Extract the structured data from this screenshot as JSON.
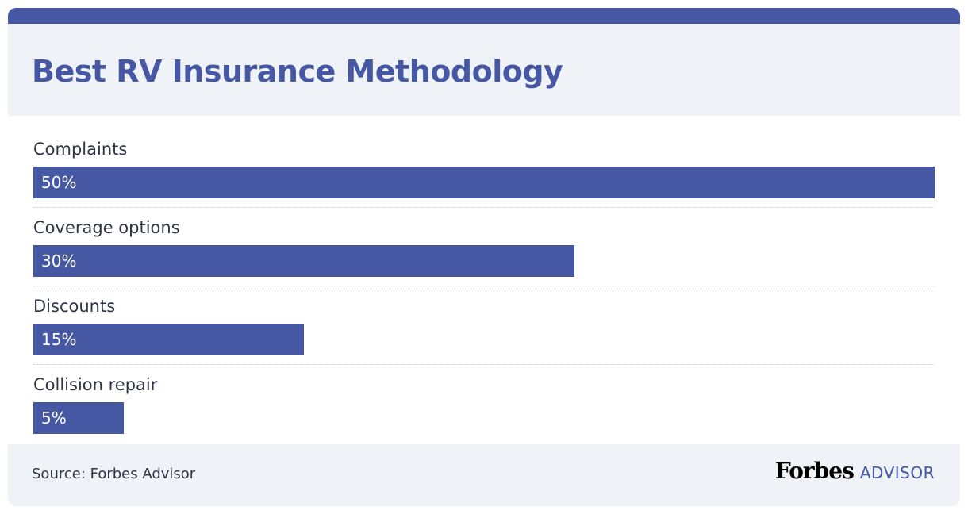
{
  "header": {
    "title": "Best RV Insurance Methodology"
  },
  "chart_data": {
    "type": "bar",
    "orientation": "horizontal",
    "title": "Best RV Insurance Methodology",
    "categories": [
      "Complaints",
      "Coverage options",
      "Discounts",
      "Collision repair"
    ],
    "values": [
      50,
      30,
      15,
      5
    ],
    "value_labels": [
      "50%",
      "30%",
      "15%",
      "5%"
    ],
    "xlim": [
      0,
      50
    ],
    "grid": false,
    "legend": "none",
    "bar_color": "#4658a3"
  },
  "footer": {
    "source": "Source: Forbes Advisor",
    "logo_forbes": "Forbes",
    "logo_advisor": "ADVISOR"
  },
  "colors": {
    "accent": "#4658a3",
    "panel": "#eff2f7",
    "text": "#2f3542"
  }
}
